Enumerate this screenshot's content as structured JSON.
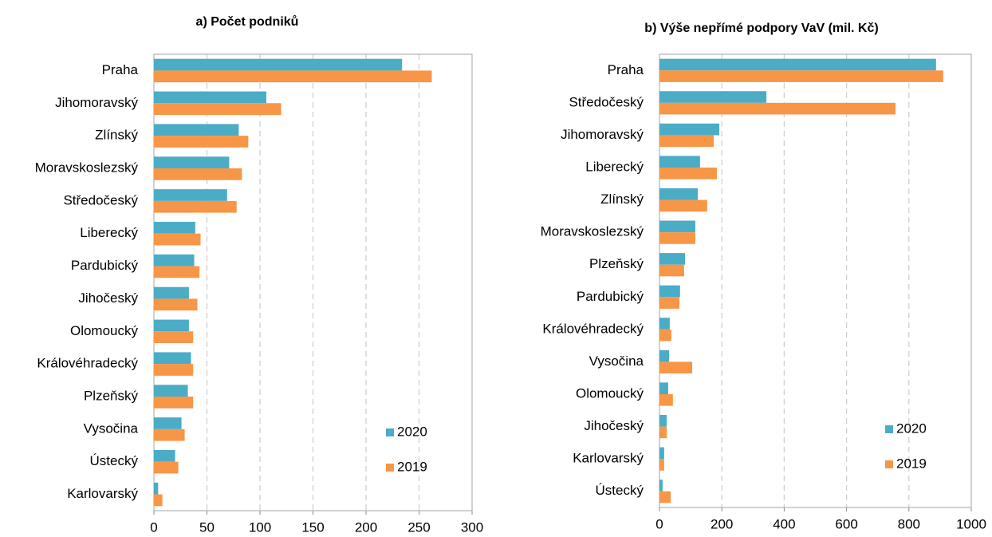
{
  "chart_data": [
    {
      "type": "bar",
      "orientation": "horizontal",
      "title": "a) Počet podniků",
      "categories": [
        "Praha",
        "Jihomoravský",
        "Zlínský",
        "Moravskoslezský",
        "Středočeský",
        "Liberecký",
        "Pardubický",
        "Jihočeský",
        "Olomoucký",
        "Královéhradecký",
        "Plzeňský",
        "Vysočina",
        "Ústecký",
        "Karlovarský"
      ],
      "series": [
        {
          "name": "2020",
          "color": "#4bacc6",
          "values": [
            234,
            106,
            80,
            71,
            69,
            39,
            38,
            33,
            33,
            35,
            32,
            26,
            20,
            4
          ]
        },
        {
          "name": "2019",
          "color": "#f79646",
          "values": [
            262,
            120,
            89,
            83,
            78,
            44,
            43,
            41,
            37,
            37,
            37,
            29,
            23,
            8
          ]
        }
      ],
      "xlim": [
        0,
        300
      ],
      "xticks": [
        0,
        50,
        100,
        150,
        200,
        250,
        300
      ],
      "grid": true,
      "legend": "lower right"
    },
    {
      "type": "bar",
      "orientation": "horizontal",
      "title": "b) Výše nepřímé podpory VaV (mil. Kč)",
      "categories": [
        "Praha",
        "Středočeský",
        "Jihomoravský",
        "Liberecký",
        "Zlínský",
        "Moravskoslezský",
        "Plzeňský",
        "Pardubický",
        "Královéhradecký",
        "Vysočina",
        "Olomoucký",
        "Jihočeský",
        "Karlovarský",
        "Ústecký"
      ],
      "series": [
        {
          "name": "2020",
          "color": "#4bacc6",
          "values": [
            887,
            343,
            192,
            130,
            123,
            115,
            82,
            66,
            33,
            31,
            28,
            23,
            15,
            10
          ]
        },
        {
          "name": "2019",
          "color": "#f79646",
          "values": [
            910,
            757,
            174,
            184,
            153,
            115,
            79,
            64,
            38,
            105,
            43,
            23,
            15,
            36
          ]
        }
      ],
      "xlim": [
        0,
        1000
      ],
      "xticks": [
        0,
        200,
        400,
        600,
        800,
        1000
      ],
      "grid": true,
      "legend": "lower right"
    }
  ]
}
